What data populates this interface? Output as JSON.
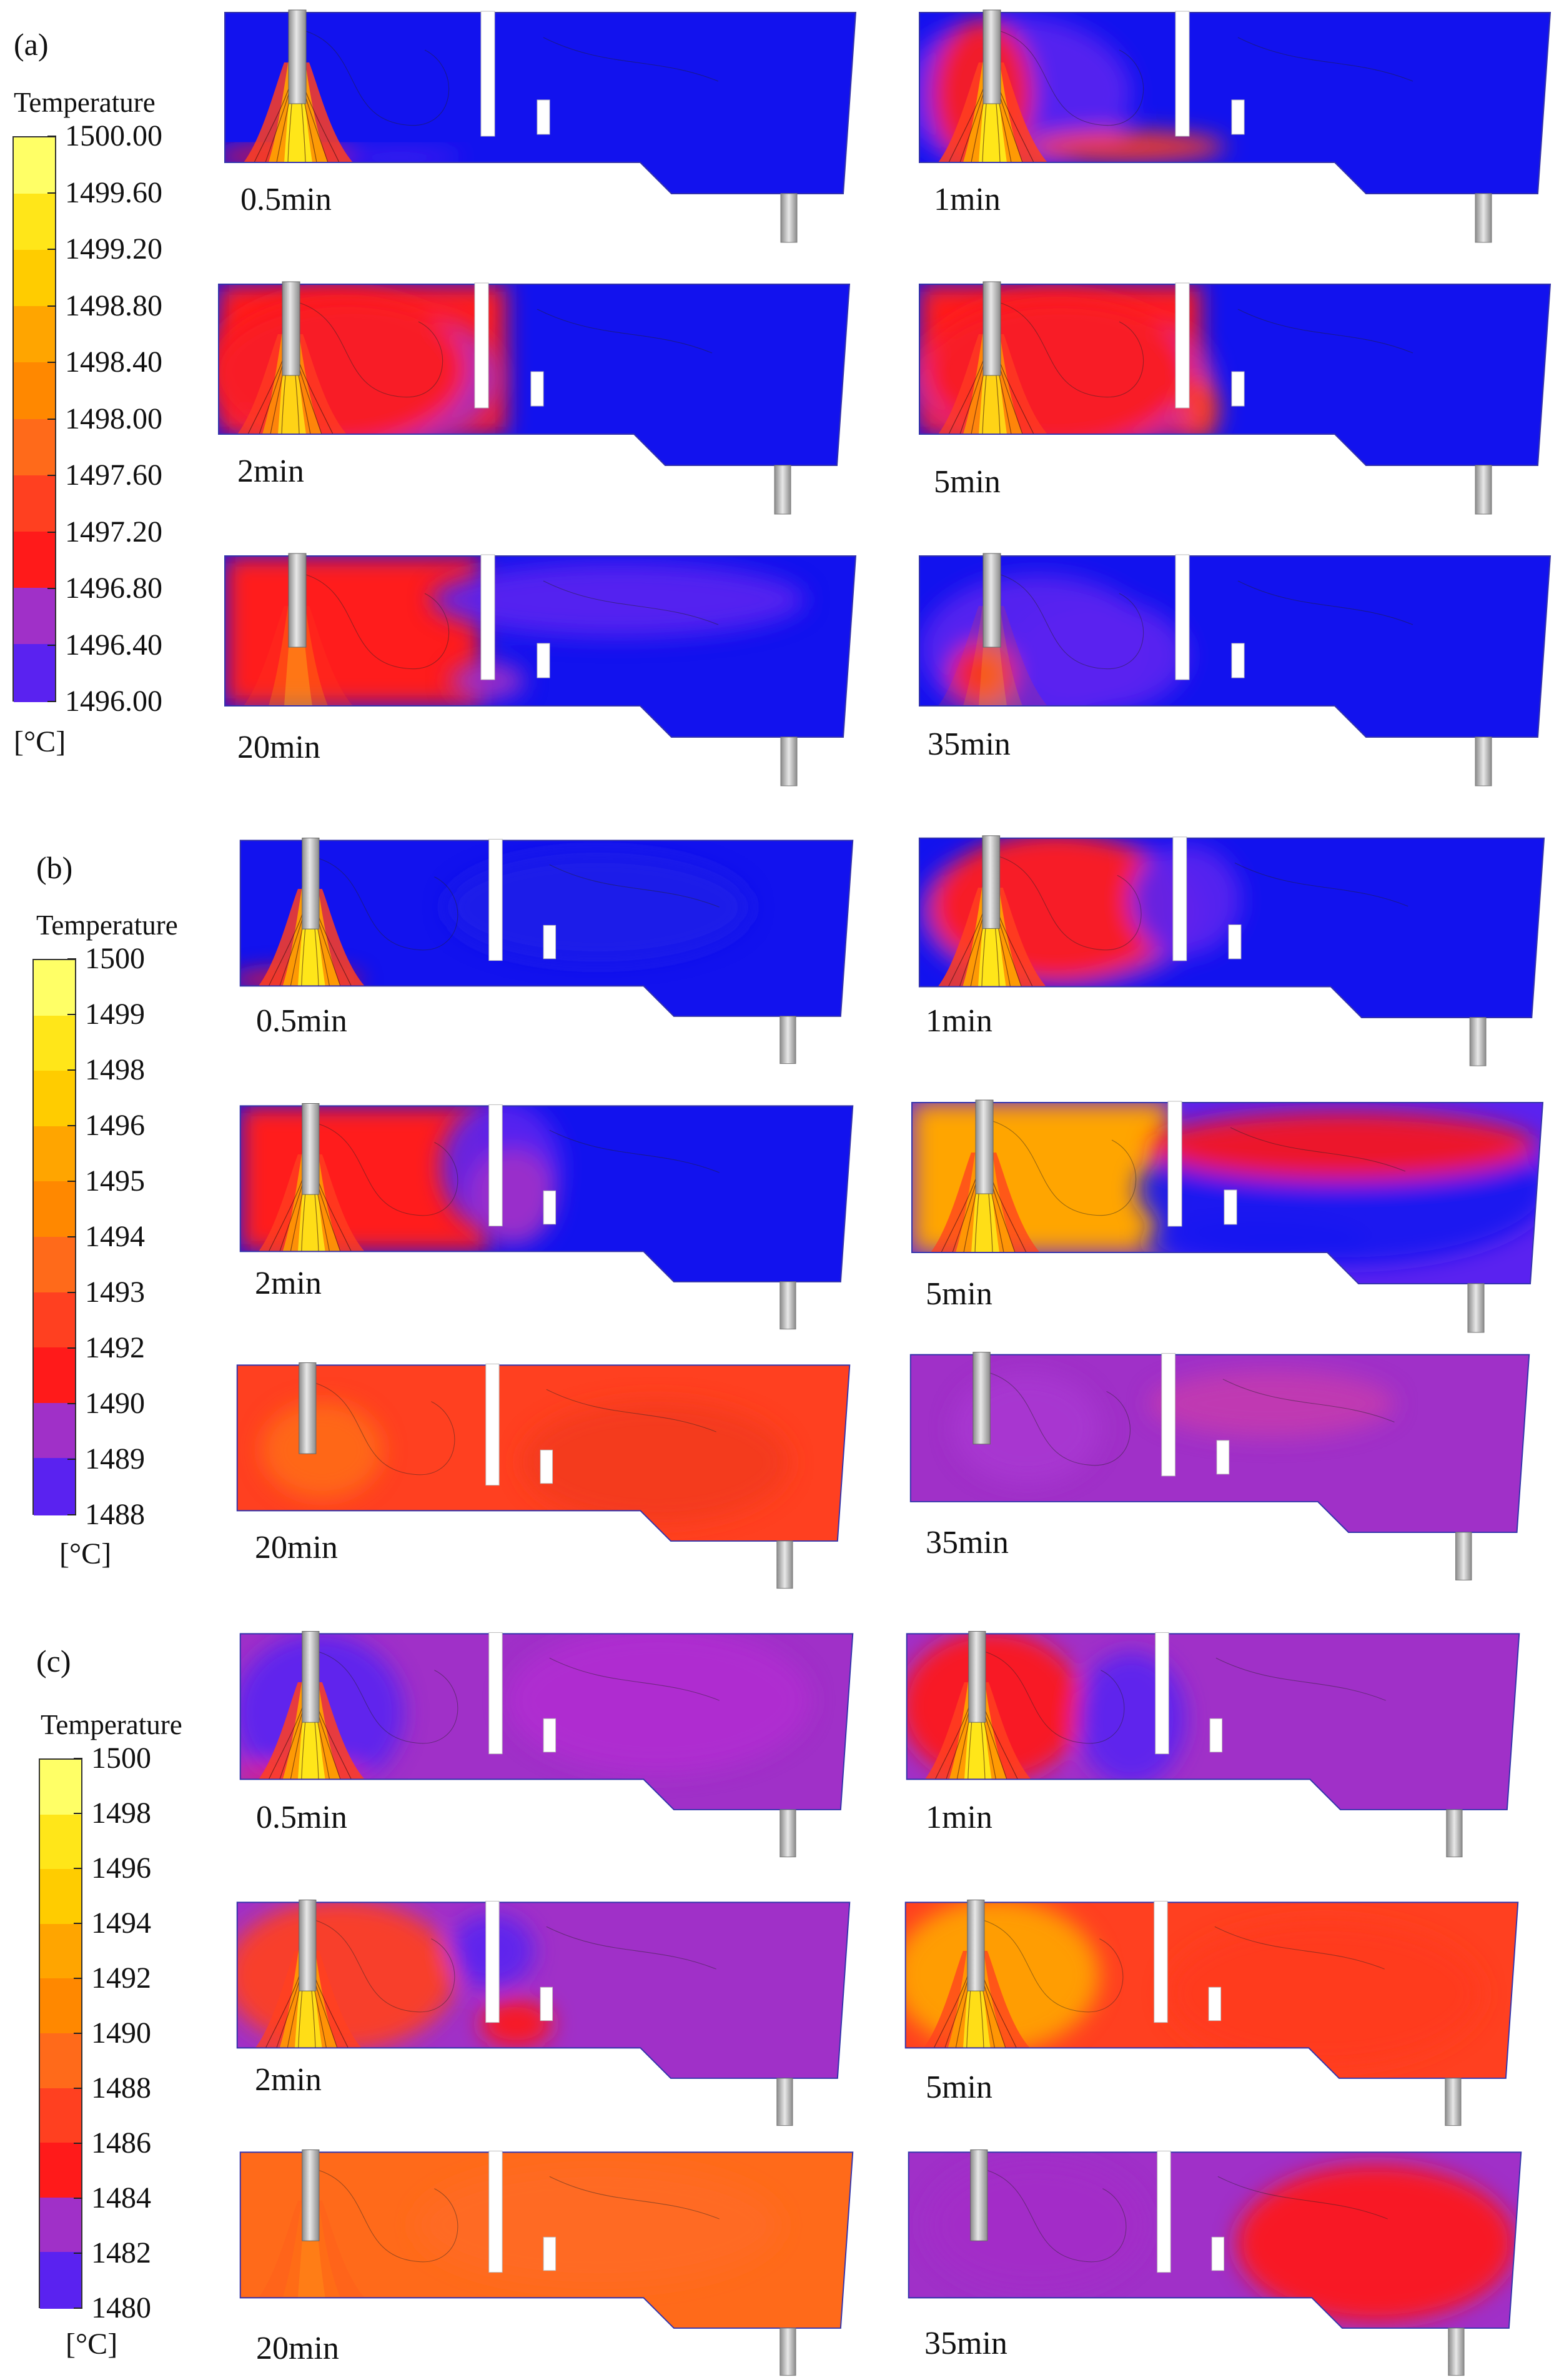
{
  "panels": [
    {
      "label": "(a)",
      "legend": {
        "title": "Temperature",
        "unit": "[°C]",
        "ticks": [
          "1500.00",
          "1499.60",
          "1499.20",
          "1498.80",
          "1498.40",
          "1498.00",
          "1497.60",
          "1497.20",
          "1496.80",
          "1496.40",
          "1496.00"
        ]
      },
      "snapshots": [
        {
          "time": "0.5min",
          "state": "a0"
        },
        {
          "time": "1min",
          "state": "a1"
        },
        {
          "time": "2min",
          "state": "a2"
        },
        {
          "time": "5min",
          "state": "a3"
        },
        {
          "time": "20min",
          "state": "a4"
        },
        {
          "time": "35min",
          "state": "a5"
        }
      ]
    },
    {
      "label": "(b)",
      "legend": {
        "title": "Temperature",
        "unit": "[°C]",
        "ticks": [
          "1500",
          "1499",
          "1498",
          "1496",
          "1495",
          "1494",
          "1493",
          "1492",
          "1490",
          "1489",
          "1488"
        ]
      },
      "snapshots": [
        {
          "time": "0.5min",
          "state": "b0"
        },
        {
          "time": "1min",
          "state": "b1"
        },
        {
          "time": "2min",
          "state": "b2"
        },
        {
          "time": "5min",
          "state": "b3"
        },
        {
          "time": "20min",
          "state": "b4"
        },
        {
          "time": "35min",
          "state": "b5"
        }
      ]
    },
    {
      "label": "(c)",
      "legend": {
        "title": "Temperature",
        "unit": "[°C]",
        "ticks": [
          "1500",
          "1498",
          "1496",
          "1494",
          "1492",
          "1490",
          "1488",
          "1486",
          "1484",
          "1482",
          "1480"
        ]
      },
      "snapshots": [
        {
          "time": "0.5min",
          "state": "c0"
        },
        {
          "time": "1min",
          "state": "c1"
        },
        {
          "time": "2min",
          "state": "c2"
        },
        {
          "time": "5min",
          "state": "c3"
        },
        {
          "time": "20min",
          "state": "c4"
        },
        {
          "time": "35min",
          "state": "c5"
        }
      ]
    }
  ],
  "colors": {
    "palette": [
      "#ffff66",
      "#ffe619",
      "#ffcc00",
      "#ffa500",
      "#ff8800",
      "#ff6a1a",
      "#ff4020",
      "#ff1a1a",
      "#e01050",
      "#a030c8",
      "#5a22f0",
      "#1818f0"
    ],
    "cold": "#1212ee",
    "nozzle_light": "#e8e8e8",
    "nozzle_dark": "#8a8a8a"
  }
}
